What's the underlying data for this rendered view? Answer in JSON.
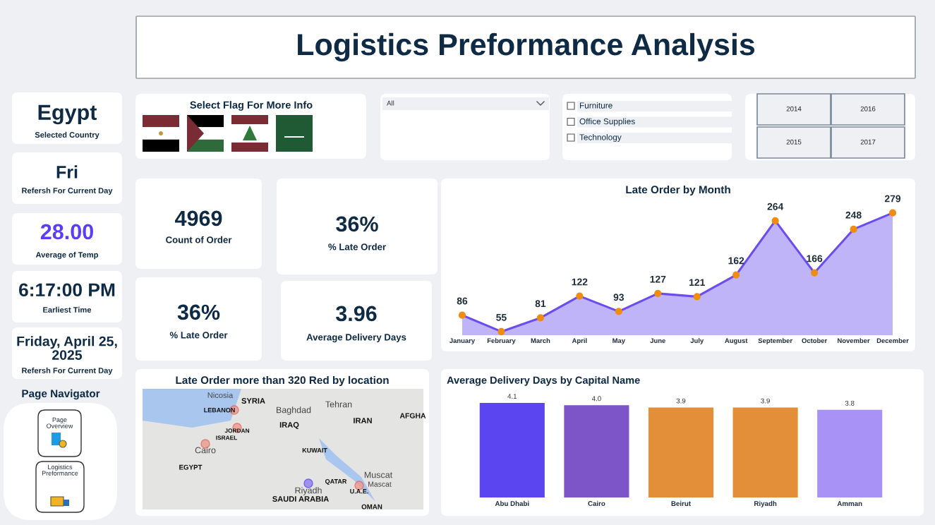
{
  "chart_data": [
    {
      "type": "other",
      "title": "Logistics Preformance Analysis"
    },
    {
      "type": "other",
      "annotations": [
        "Egypt",
        "Selected Country"
      ]
    },
    {
      "type": "other",
      "annotations": [
        "Fri",
        "Refersh For Current Day"
      ]
    },
    {
      "type": "other",
      "annotations": [
        "28.00",
        "Average of Temp"
      ],
      "color": "#5b3df5"
    },
    {
      "type": "other",
      "annotations": [
        "6:17:00 PM",
        "Earliest Time"
      ]
    },
    {
      "type": "other",
      "annotations": [
        "Friday, April 25,\n2025",
        "Refersh For Current Day"
      ]
    },
    {
      "type": "other",
      "title": "Page Navigator",
      "annotations": [
        "Page\nOverview",
        "Logistics\nPreformance"
      ]
    },
    {
      "type": "other",
      "title": "Select Flag For More Info"
    },
    {
      "type": "other",
      "annotations": [
        "All"
      ]
    },
    {
      "type": "other",
      "annotations": [
        "Furniture",
        "Office Supplies",
        "Technology"
      ]
    },
    {
      "type": "other",
      "annotations": [
        "2014",
        "2016",
        "2015",
        "2017"
      ]
    },
    {
      "type": "other",
      "annotations": [
        "4969",
        "Count of Order"
      ]
    },
    {
      "type": "other",
      "annotations": [
        "36%",
        "% Late Order"
      ]
    },
    {
      "type": "other",
      "annotations": [
        "36%",
        "% Late Order"
      ]
    },
    {
      "type": "other",
      "annotations": [
        "3.96",
        "Average Delivery Days"
      ]
    },
    {
      "type": "area",
      "title": "Late Order by Month",
      "categories": [
        "January",
        "February",
        "March",
        "April",
        "May",
        "June",
        "July",
        "August",
        "September",
        "October",
        "November",
        "December"
      ],
      "series": [
        {
          "color": "#6a4cf0",
          "colors": [
            "#f08c10",
            "#f08c10",
            "#f08c10",
            "#f08c10",
            "#f08c10",
            "#f08c10",
            "#f08c10",
            "#f08c10",
            "#f08c10",
            "#f08c10",
            "#f08c10",
            "#f08c10"
          ],
          "values": [
            86,
            55,
            81,
            122,
            93,
            127,
            121,
            162,
            264,
            166,
            248,
            279
          ]
        }
      ],
      "marker": "circle",
      "data_labels": true,
      "tick_labels": "x",
      "grid": false,
      "legend": false
    },
    {
      "type": "other",
      "title": "Late Order more than 320 Red by location",
      "annotations": [
        "Nicosia",
        "SYRIA",
        "LEBANON",
        "Baghdad",
        "Tehran",
        "IRAQ",
        "IRAN",
        "AFGHA",
        "JORDAN",
        "ISRAEL",
        "Cairo",
        "KUWAIT",
        "EGYPT",
        "QATAR",
        "Muscat",
        "Mascat",
        "Riyadh",
        "U.A.E.",
        "SAUDI ARABIA",
        "OMAN"
      ]
    },
    {
      "type": "bar",
      "title": "Average Delivery Days by Capital Name",
      "categories": [
        "Abu Dhabi",
        "Cairo",
        "Beirut",
        "Riyadh",
        "Amman"
      ],
      "values": [
        4.1,
        4.0,
        3.9,
        3.9,
        3.8
      ],
      "value_labels": [
        "4.1",
        "4.0",
        "3.9",
        "3.9",
        "3.8"
      ],
      "colors": [
        "#5b45f0",
        "#7e55c8",
        "#e38f3a",
        "#e38f3a",
        "#a892f5"
      ],
      "tick_labels": "x",
      "grid": false,
      "legend": false
    }
  ]
}
